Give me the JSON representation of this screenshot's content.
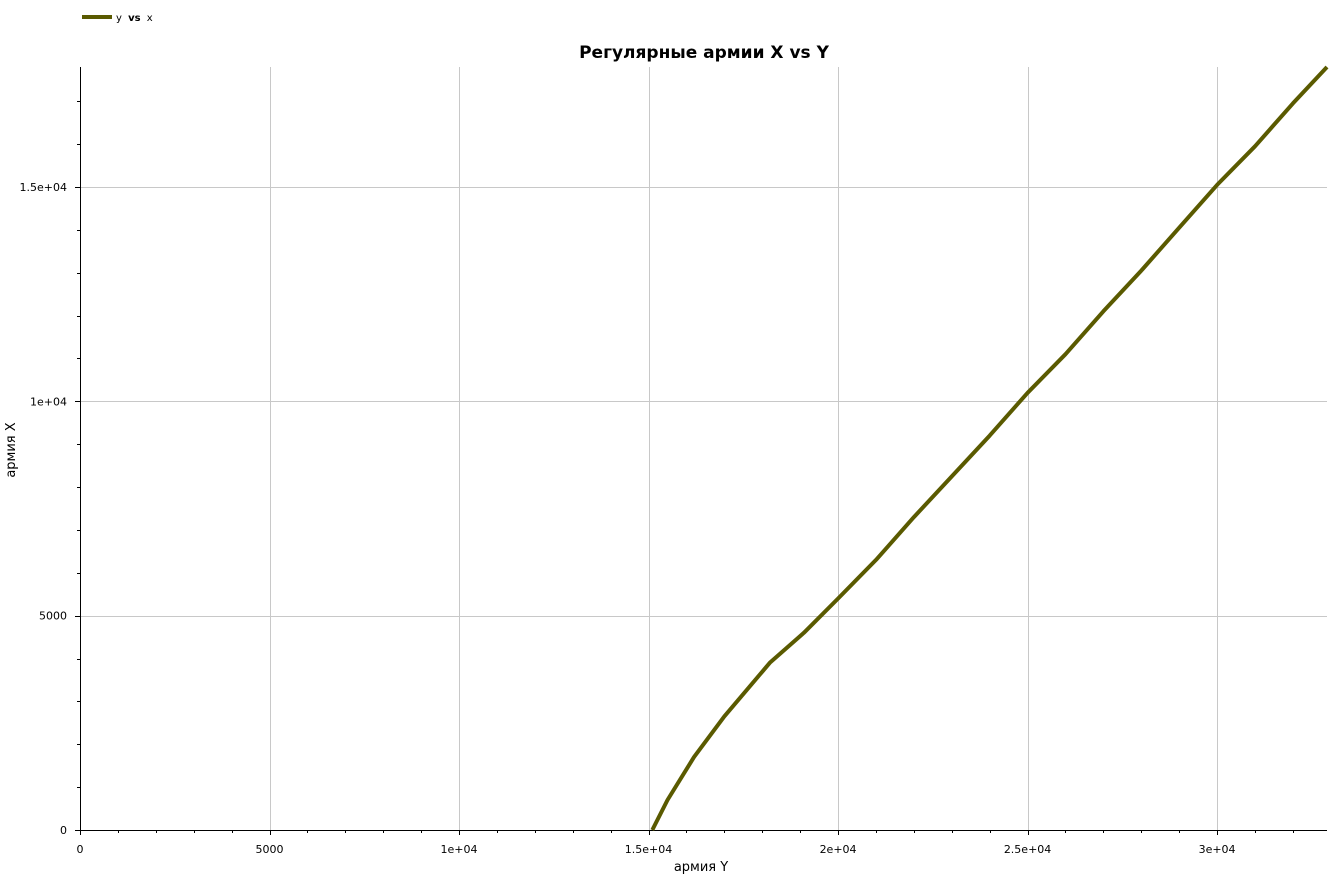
{
  "chart_data": {
    "type": "line",
    "title": "Регулярные армии X vs Y",
    "xlabel": "армия Y",
    "ylabel": "армия X",
    "xlim": [
      0,
      32900
    ],
    "ylim": [
      0,
      17800
    ],
    "grid": true,
    "legend_position": "top-left",
    "legend": {
      "parts": [
        "y",
        "vs",
        "x"
      ]
    },
    "x_ticks": [
      {
        "value": 0,
        "label": "0"
      },
      {
        "value": 5000,
        "label": "5000"
      },
      {
        "value": 10000,
        "label": "1e+04"
      },
      {
        "value": 15000,
        "label": "1.5e+04"
      },
      {
        "value": 20000,
        "label": "2e+04"
      },
      {
        "value": 25000,
        "label": "2.5e+04"
      },
      {
        "value": 30000,
        "label": "3e+04"
      }
    ],
    "y_ticks": [
      {
        "value": 0,
        "label": "0"
      },
      {
        "value": 5000,
        "label": "5000"
      },
      {
        "value": 10000,
        "label": "1e+04"
      },
      {
        "value": 15000,
        "label": "1.5e+04"
      }
    ],
    "series": [
      {
        "color": "#5a5a00",
        "x": [
          15100,
          15500,
          16200,
          17000,
          18200,
          19100,
          20000,
          21000,
          22000,
          23000,
          24000,
          25000,
          26000,
          27000,
          28000,
          29000,
          30000,
          31000,
          32000,
          32900
        ],
        "y": [
          0,
          700,
          1700,
          2650,
          3900,
          4600,
          5400,
          6300,
          7300,
          8250,
          9200,
          10200,
          11100,
          12100,
          13050,
          14050,
          15050,
          15950,
          16950,
          17800
        ]
      }
    ]
  }
}
